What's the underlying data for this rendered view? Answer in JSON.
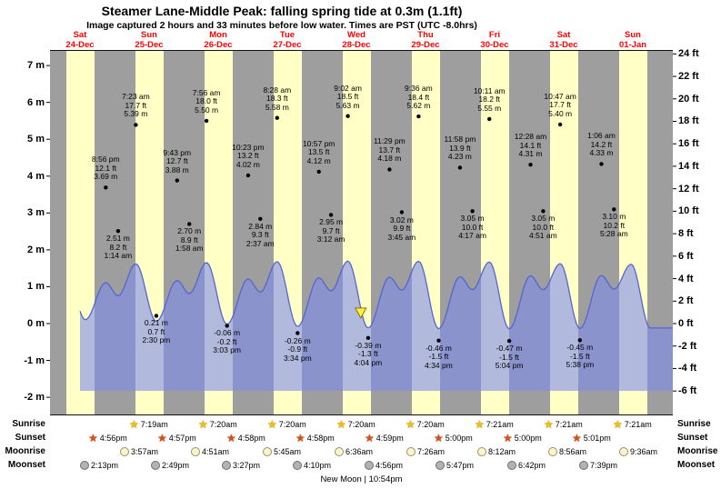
{
  "header": {
    "title": "Steamer Lane-Middle Peak: falling  spring tide at 0.3m (1.1ft)",
    "subtitle": "Image captured 2 hours and 33 minutes before low water. Times are PST (UTC -8.0hrs)"
  },
  "chart_data": {
    "type": "area",
    "title": "Steamer Lane-Middle Peak tide curve",
    "ylabel_left": "meters",
    "ylabel_right": "feet",
    "ylim_m": [
      -2,
      7
    ],
    "ylim_ft": [
      -6,
      24
    ],
    "days": [
      {
        "dow": "Sat",
        "date": "24-Dec"
      },
      {
        "dow": "Sun",
        "date": "25-Dec"
      },
      {
        "dow": "Mon",
        "date": "26-Dec"
      },
      {
        "dow": "Tue",
        "date": "27-Dec"
      },
      {
        "dow": "Wed",
        "date": "28-Dec"
      },
      {
        "dow": "Thu",
        "date": "29-Dec"
      },
      {
        "dow": "Fri",
        "date": "30-Dec"
      },
      {
        "dow": "Sat",
        "date": "31-Dec"
      },
      {
        "dow": "Sun",
        "date": "01-Jan"
      }
    ],
    "y_left_ticks": [
      {
        "label": "7 m",
        "v": 7
      },
      {
        "label": "6 m",
        "v": 6
      },
      {
        "label": "5 m",
        "v": 5
      },
      {
        "label": "4 m",
        "v": 4
      },
      {
        "label": "3 m",
        "v": 3
      },
      {
        "label": "2 m",
        "v": 2
      },
      {
        "label": "1 m",
        "v": 1
      },
      {
        "label": "0 m",
        "v": 0
      },
      {
        "label": "-1 m",
        "v": -1
      },
      {
        "label": "-2 m",
        "v": -2
      }
    ],
    "y_right_ticks": [
      {
        "label": "24 ft",
        "v": 24
      },
      {
        "label": "22 ft",
        "v": 22
      },
      {
        "label": "20 ft",
        "v": 20
      },
      {
        "label": "18 ft",
        "v": 18
      },
      {
        "label": "16 ft",
        "v": 16
      },
      {
        "label": "14 ft",
        "v": 14
      },
      {
        "label": "12 ft",
        "v": 12
      },
      {
        "label": "10 ft",
        "v": 10
      },
      {
        "label": "8 ft",
        "v": 8
      },
      {
        "label": "6 ft",
        "v": 6
      },
      {
        "label": "4 ft",
        "v": 4
      },
      {
        "label": "2 ft",
        "v": 2
      },
      {
        "label": "0 ft",
        "v": 0
      },
      {
        "label": "-2 ft",
        "v": -2
      },
      {
        "label": "-4 ft",
        "v": -4
      },
      {
        "label": "-6 ft",
        "v": -6
      }
    ],
    "tide_events": [
      {
        "day": 0,
        "hour": 1.0,
        "height_m": 2.3
      },
      {
        "day": 0,
        "hour": 6.8,
        "height_m": 5.2
      },
      {
        "day": 0,
        "hour": 13.85,
        "height_m": 0.35
      },
      {
        "day": 0,
        "hour": 20.93,
        "height_m": 3.69,
        "type": "high",
        "time_label": "8:56 pm",
        "ft_label": "12.1 ft",
        "m_label": "3.69 m"
      },
      {
        "day": 1,
        "hour": 1.23,
        "height_m": 2.51,
        "type": "low",
        "time_label": "1:14 am",
        "ft_label": "8.2 ft",
        "m_label": "2.51 m"
      },
      {
        "day": 1,
        "hour": 7.38,
        "height_m": 5.39,
        "type": "high",
        "time_label": "7:23 am",
        "ft_label": "17.7 ft",
        "m_label": "5.39 m"
      },
      {
        "day": 1,
        "hour": 14.5,
        "height_m": 0.21,
        "type": "low",
        "time_label": "2:30 pm",
        "ft_label": "0.7 ft",
        "m_label": "0.21 m"
      },
      {
        "day": 1,
        "hour": 21.72,
        "height_m": 3.88,
        "type": "high",
        "time_label": "9:43 pm",
        "ft_label": "12.7 ft",
        "m_label": "3.88 m"
      },
      {
        "day": 2,
        "hour": 1.97,
        "height_m": 2.7,
        "type": "low",
        "time_label": "1:58 am",
        "ft_label": "8.9 ft",
        "m_label": "2.70 m"
      },
      {
        "day": 2,
        "hour": 7.93,
        "height_m": 5.5,
        "type": "high",
        "time_label": "7:56 am",
        "ft_label": "18.0 ft",
        "m_label": "5.50 m"
      },
      {
        "day": 2,
        "hour": 15.05,
        "height_m": -0.06,
        "type": "low",
        "time_label": "3:03 pm",
        "ft_label": "-0.2 ft",
        "m_label": "-0.06 m"
      },
      {
        "day": 2,
        "hour": 22.38,
        "height_m": 4.02,
        "type": "high",
        "time_label": "10:23 pm",
        "ft_label": "13.2 ft",
        "m_label": "4.02 m"
      },
      {
        "day": 3,
        "hour": 2.62,
        "height_m": 2.84,
        "type": "low",
        "time_label": "2:37 am",
        "ft_label": "9.3 ft",
        "m_label": "2.84 m"
      },
      {
        "day": 3,
        "hour": 8.47,
        "height_m": 5.58,
        "type": "high",
        "time_label": "8:28 am",
        "ft_label": "18.3 ft",
        "m_label": "5.58 m"
      },
      {
        "day": 3,
        "hour": 15.57,
        "height_m": -0.26,
        "type": "low",
        "time_label": "3:34 pm",
        "ft_label": "-0.9 ft",
        "m_label": "-0.26 m"
      },
      {
        "day": 3,
        "hour": 22.95,
        "height_m": 4.12,
        "type": "high",
        "time_label": "10:57 pm",
        "ft_label": "13.5 ft",
        "m_label": "4.12 m"
      },
      {
        "day": 4,
        "hour": 3.2,
        "height_m": 2.95,
        "type": "low",
        "time_label": "3:12 am",
        "ft_label": "9.7 ft",
        "m_label": "2.95 m"
      },
      {
        "day": 4,
        "hour": 9.03,
        "height_m": 5.63,
        "type": "high",
        "time_label": "9:02 am",
        "ft_label": "18.5 ft",
        "m_label": "5.63 m"
      },
      {
        "day": 4,
        "hour": 16.07,
        "height_m": -0.39,
        "type": "low",
        "time_label": "4:04 pm",
        "ft_label": "-1.3 ft",
        "m_label": "-0.39 m"
      },
      {
        "day": 4,
        "hour": 23.48,
        "height_m": 4.18,
        "type": "high",
        "time_label": "11:29 pm",
        "ft_label": "13.7 ft",
        "m_label": "4.18 m"
      },
      {
        "day": 5,
        "hour": 3.75,
        "height_m": 3.02,
        "type": "low",
        "time_label": "3:45 am",
        "ft_label": "9.9 ft",
        "m_label": "3.02 m"
      },
      {
        "day": 5,
        "hour": 9.6,
        "height_m": 5.62,
        "type": "high",
        "time_label": "9:36 am",
        "ft_label": "18.4 ft",
        "m_label": "5.62 m"
      },
      {
        "day": 5,
        "hour": 16.57,
        "height_m": -0.46,
        "type": "low",
        "time_label": "4:34 pm",
        "ft_label": "-1.5 ft",
        "m_label": "-0.46 m"
      },
      {
        "day": 5,
        "hour": 23.97,
        "height_m": 4.23,
        "type": "high",
        "time_label": "11:58 pm",
        "ft_label": "13.9 ft",
        "m_label": "4.23 m"
      },
      {
        "day": 6,
        "hour": 4.28,
        "height_m": 3.05,
        "type": "low",
        "time_label": "4:17 am",
        "ft_label": "10.0 ft",
        "m_label": "3.05 m"
      },
      {
        "day": 6,
        "hour": 10.18,
        "height_m": 5.55,
        "type": "high",
        "time_label": "10:11 am",
        "ft_label": "18.2 ft",
        "m_label": "5.55 m"
      },
      {
        "day": 6,
        "hour": 17.07,
        "height_m": -0.47,
        "type": "low",
        "time_label": "5:04 pm",
        "ft_label": "-1.5 ft",
        "m_label": "-0.47 m"
      },
      {
        "day": 7,
        "hour": 0.47,
        "height_m": 4.31,
        "type": "high",
        "time_label": "12:28 am",
        "ft_label": "14.1 ft",
        "m_label": "4.31 m"
      },
      {
        "day": 7,
        "hour": 4.85,
        "height_m": 3.05,
        "type": "low",
        "time_label": "4:51 am",
        "ft_label": "10.0 ft",
        "m_label": "3.05 m"
      },
      {
        "day": 7,
        "hour": 10.78,
        "height_m": 5.4,
        "type": "high",
        "time_label": "10:47 am",
        "ft_label": "17.7 ft",
        "m_label": "5.40 m"
      },
      {
        "day": 7,
        "hour": 17.63,
        "height_m": -0.45,
        "type": "low",
        "time_label": "5:38 pm",
        "ft_label": "-1.5 ft",
        "m_label": "-0.45 m"
      },
      {
        "day": 8,
        "hour": 1.1,
        "height_m": 4.33,
        "type": "high",
        "time_label": "1:06 am",
        "ft_label": "14.2 ft",
        "m_label": "4.33 m"
      },
      {
        "day": 8,
        "hour": 5.47,
        "height_m": 3.1,
        "type": "low",
        "time_label": "5:28 am",
        "ft_label": "10.2 ft",
        "m_label": "3.10 m"
      },
      {
        "day": 8,
        "hour": 11.4,
        "height_m": 5.35
      },
      {
        "day": 8,
        "hour": 18.1,
        "height_m": -0.4
      }
    ],
    "current_marker": {
      "day": 4,
      "hour": 13.52,
      "value_m": 0.3,
      "note": "0.3m (1.1ft)"
    },
    "colors": {
      "day_band": "#ffffc6",
      "night_band": "#9e9e9e",
      "tide_fill": "rgba(125,140,235,0.6)",
      "tide_line": "#5566cc",
      "date_label": "#ff0000",
      "marker_fill": "#ffee44"
    }
  },
  "sun_moon": {
    "rows": [
      {
        "name": "Sunrise",
        "icon": "sunrise-star-icon",
        "color": "#f2c200",
        "entries": [
          {
            "day": 1,
            "time": "7:19am",
            "h": 7.317
          },
          {
            "day": 2,
            "time": "7:20am",
            "h": 7.333
          },
          {
            "day": 3,
            "time": "7:20am",
            "h": 7.333
          },
          {
            "day": 4,
            "time": "7:20am",
            "h": 7.333
          },
          {
            "day": 5,
            "time": "7:20am",
            "h": 7.333
          },
          {
            "day": 6,
            "time": "7:21am",
            "h": 7.35
          },
          {
            "day": 7,
            "time": "7:21am",
            "h": 7.35
          },
          {
            "day": 8,
            "time": "7:21am",
            "h": 7.35
          }
        ]
      },
      {
        "name": "Sunset",
        "icon": "sunset-star-icon",
        "color": "#dd4d1a",
        "entries": [
          {
            "day": 0,
            "time": "4:56pm",
            "h": 16.933
          },
          {
            "day": 1,
            "time": "4:57pm",
            "h": 16.95
          },
          {
            "day": 2,
            "time": "4:58pm",
            "h": 16.967
          },
          {
            "day": 3,
            "time": "4:58pm",
            "h": 16.967
          },
          {
            "day": 4,
            "time": "4:59pm",
            "h": 16.983
          },
          {
            "day": 5,
            "time": "5:00pm",
            "h": 17.0
          },
          {
            "day": 6,
            "time": "5:00pm",
            "h": 17.0
          },
          {
            "day": 7,
            "time": "5:01pm",
            "h": 17.017
          }
        ]
      },
      {
        "name": "Moonrise",
        "icon": "moonrise-moon-icon",
        "color": "#fdf3cf",
        "entries": [
          {
            "day": 1,
            "time": "3:57am",
            "h": 3.95
          },
          {
            "day": 2,
            "time": "4:51am",
            "h": 4.85
          },
          {
            "day": 3,
            "time": "5:45am",
            "h": 5.75
          },
          {
            "day": 4,
            "time": "6:36am",
            "h": 6.6
          },
          {
            "day": 5,
            "time": "7:26am",
            "h": 7.433
          },
          {
            "day": 6,
            "time": "8:12am",
            "h": 8.2
          },
          {
            "day": 7,
            "time": "8:56am",
            "h": 8.933
          },
          {
            "day": 8,
            "time": "9:36am",
            "h": 9.6
          }
        ]
      },
      {
        "name": "Moonset",
        "icon": "moonset-moon-icon",
        "color": "#b2b2b2",
        "entries": [
          {
            "day": 0,
            "time": "2:13pm",
            "h": 14.217
          },
          {
            "day": 1,
            "time": "2:49pm",
            "h": 14.817
          },
          {
            "day": 2,
            "time": "3:27pm",
            "h": 15.45
          },
          {
            "day": 3,
            "time": "4:10pm",
            "h": 16.167
          },
          {
            "day": 4,
            "time": "4:56pm",
            "h": 16.933
          },
          {
            "day": 5,
            "time": "5:47pm",
            "h": 17.783
          },
          {
            "day": 6,
            "time": "6:42pm",
            "h": 18.7
          },
          {
            "day": 7,
            "time": "7:39pm",
            "h": 19.65
          }
        ]
      }
    ],
    "new_moon": "New Moon | 10:54pm"
  }
}
